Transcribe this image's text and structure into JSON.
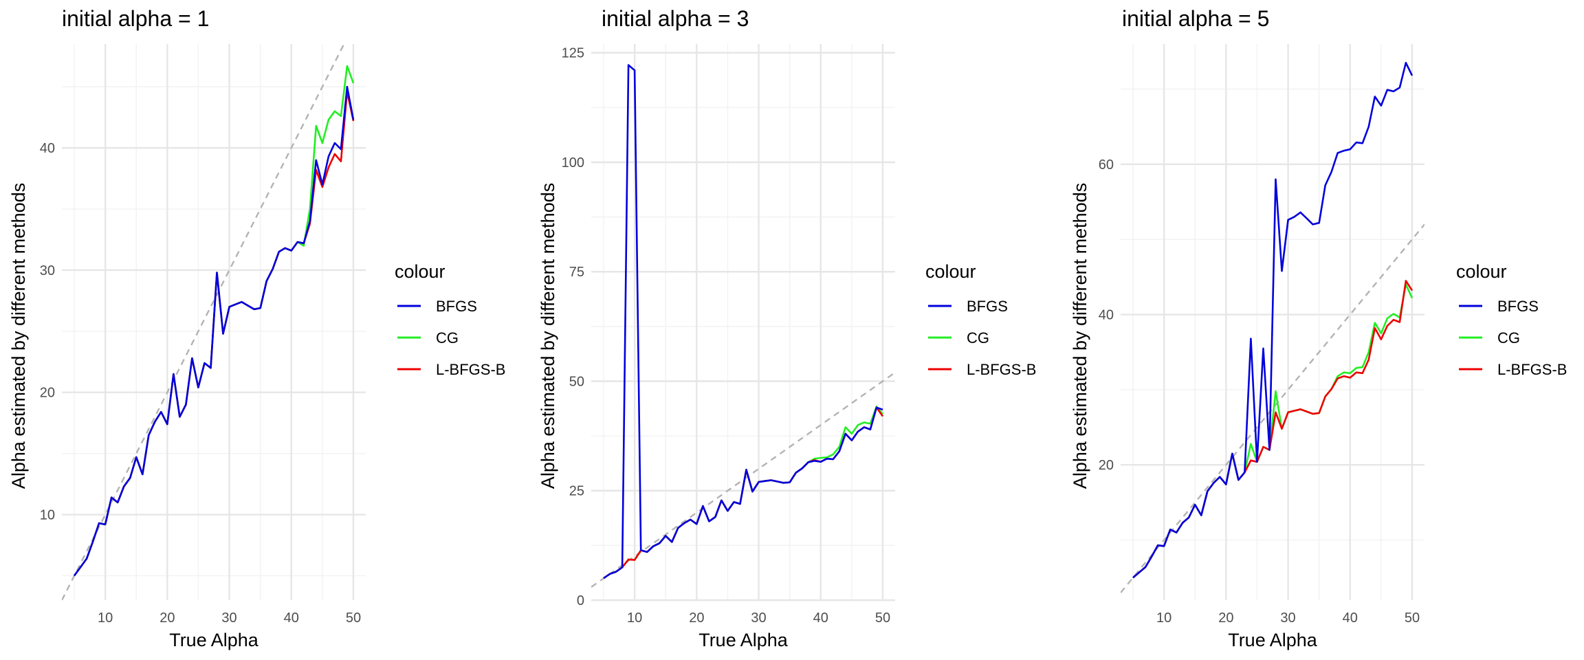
{
  "chart_data": [
    {
      "type": "line",
      "title": "initial alpha = 1",
      "xlabel": "True Alpha",
      "ylabel": "Alpha estimated by different methods",
      "xlim": [
        3,
        52
      ],
      "ylim": [
        3,
        48.5
      ],
      "xticks": [
        10,
        20,
        30,
        40,
        50
      ],
      "yticks": [
        10,
        20,
        30,
        40
      ],
      "grid": true,
      "reference_line": "y = x (dashed)",
      "legend": {
        "title": "colour",
        "position": "right",
        "entries": [
          "BFGS",
          "CG",
          "L-BFGS-B"
        ]
      },
      "x": [
        5,
        6,
        7,
        8,
        9,
        10,
        11,
        12,
        13,
        14,
        15,
        16,
        17,
        18,
        19,
        20,
        21,
        22,
        23,
        24,
        25,
        26,
        27,
        28,
        29,
        30,
        31,
        32,
        33,
        34,
        35,
        36,
        37,
        38,
        39,
        40,
        41,
        42,
        43,
        44,
        45,
        46,
        47,
        48,
        49,
        50
      ],
      "series": [
        {
          "name": "BFGS",
          "color": "#0000dd",
          "values": [
            5,
            5.7,
            6.4,
            7.8,
            9.3,
            9.2,
            11.4,
            11.0,
            12.3,
            13.0,
            14.7,
            13.3,
            16.5,
            17.6,
            18.4,
            17.4,
            21.5,
            18.0,
            19.0,
            22.8,
            20.4,
            22.4,
            22.0,
            29.8,
            24.8,
            27.0,
            27.2,
            27.4,
            27.1,
            26.8,
            26.9,
            29.1,
            30.1,
            31.5,
            31.8,
            31.6,
            32.3,
            32.2,
            34.0,
            39.0,
            37.0,
            39.3,
            40.4,
            39.9,
            45.0,
            42.3
          ]
        },
        {
          "name": "CG",
          "color": "#22ee22",
          "values": [
            5,
            5.7,
            6.4,
            7.8,
            9.3,
            9.2,
            11.4,
            11.0,
            12.3,
            13.0,
            14.7,
            13.3,
            16.5,
            17.6,
            18.4,
            17.4,
            21.5,
            18.0,
            19.0,
            22.8,
            20.4,
            22.4,
            22.0,
            29.8,
            24.8,
            27.0,
            27.2,
            27.4,
            27.1,
            26.8,
            26.9,
            29.1,
            30.1,
            31.5,
            31.8,
            31.6,
            32.3,
            32.0,
            35.0,
            41.8,
            40.4,
            42.3,
            43.0,
            42.6,
            46.7,
            45.3
          ]
        },
        {
          "name": "L-BFGS-B",
          "color": "#ee0000",
          "values": [
            5,
            5.7,
            6.4,
            7.8,
            9.3,
            9.2,
            11.4,
            11.0,
            12.3,
            13.0,
            14.7,
            13.3,
            16.5,
            17.6,
            18.4,
            17.4,
            21.5,
            18.0,
            19.0,
            22.8,
            20.4,
            22.4,
            22.0,
            29.8,
            24.8,
            27.0,
            27.2,
            27.4,
            27.1,
            26.8,
            26.9,
            29.1,
            30.1,
            31.5,
            31.8,
            31.6,
            32.3,
            32.2,
            33.8,
            38.2,
            36.8,
            38.4,
            39.5,
            38.9,
            44.6,
            42.2
          ]
        }
      ]
    },
    {
      "type": "line",
      "title": "initial alpha = 3",
      "xlabel": "True Alpha",
      "ylabel": "Alpha estimated by different methods",
      "xlim": [
        3,
        52
      ],
      "ylim": [
        0,
        127
      ],
      "xticks": [
        10,
        20,
        30,
        40,
        50
      ],
      "yticks": [
        0,
        25,
        50,
        75,
        100,
        125
      ],
      "grid": true,
      "reference_line": "y = x (dashed)",
      "legend": {
        "title": "colour",
        "position": "right",
        "entries": [
          "BFGS",
          "CG",
          "L-BFGS-B"
        ]
      },
      "x": [
        5,
        6,
        7,
        8,
        9,
        10,
        11,
        12,
        13,
        14,
        15,
        16,
        17,
        18,
        19,
        20,
        21,
        22,
        23,
        24,
        25,
        26,
        27,
        28,
        29,
        30,
        31,
        32,
        33,
        34,
        35,
        36,
        37,
        38,
        39,
        40,
        41,
        42,
        43,
        44,
        45,
        46,
        47,
        48,
        49,
        50
      ],
      "series": [
        {
          "name": "BFGS",
          "color": "#0000dd",
          "values": [
            5,
            6,
            6.5,
            7.5,
            122.2,
            121.0,
            11.4,
            11.0,
            12.3,
            13.0,
            14.7,
            13.3,
            16.5,
            17.6,
            18.4,
            17.4,
            21.5,
            18.0,
            19.0,
            22.8,
            20.4,
            22.4,
            22.0,
            29.8,
            24.8,
            27.0,
            27.2,
            27.4,
            27.1,
            26.8,
            26.9,
            29.1,
            30.1,
            31.5,
            31.8,
            31.6,
            32.3,
            32.2,
            34.0,
            38.0,
            36.5,
            38.5,
            39.5,
            39.0,
            44.0,
            43.5
          ]
        },
        {
          "name": "CG",
          "color": "#22ee22",
          "values": [
            5,
            6,
            6.5,
            7.5,
            9.3,
            9.2,
            11.4,
            11.0,
            12.3,
            13.0,
            14.7,
            13.3,
            16.5,
            17.6,
            18.4,
            17.4,
            21.5,
            18.0,
            19.0,
            22.8,
            20.4,
            22.4,
            22.0,
            29.8,
            24.8,
            27.0,
            27.2,
            27.4,
            27.1,
            26.8,
            26.9,
            29.1,
            30.1,
            31.5,
            32.3,
            32.5,
            32.6,
            33.3,
            35.0,
            39.5,
            38.0,
            40.0,
            40.6,
            40.3,
            44.2,
            42.5
          ]
        },
        {
          "name": "L-BFGS-B",
          "color": "#ee0000",
          "values": [
            5,
            6,
            6.5,
            7.5,
            9.3,
            9.2,
            11.4,
            11.0,
            12.3,
            13.0,
            14.7,
            13.3,
            16.5,
            17.6,
            18.4,
            17.4,
            21.5,
            18.0,
            19.0,
            22.8,
            20.4,
            22.4,
            22.0,
            29.8,
            24.8,
            27.0,
            27.2,
            27.4,
            27.1,
            26.8,
            26.9,
            29.1,
            30.1,
            31.5,
            32.0,
            31.6,
            32.3,
            32.2,
            34.0,
            38.0,
            36.5,
            38.5,
            39.5,
            39.0,
            44.0,
            42.0
          ]
        }
      ]
    },
    {
      "type": "line",
      "title": "initial alpha = 5",
      "xlabel": "True Alpha",
      "ylabel": "Alpha estimated by different methods",
      "xlim": [
        3,
        52
      ],
      "ylim": [
        2,
        76
      ],
      "xticks": [
        10,
        20,
        30,
        40,
        50
      ],
      "yticks": [
        20,
        40,
        60
      ],
      "grid": true,
      "reference_line": "y = x (dashed)",
      "legend": {
        "title": "colour",
        "position": "right",
        "entries": [
          "BFGS",
          "CG",
          "L-BFGS-B"
        ]
      },
      "x": [
        5,
        6,
        7,
        8,
        9,
        10,
        11,
        12,
        13,
        14,
        15,
        16,
        17,
        18,
        19,
        20,
        21,
        22,
        23,
        24,
        25,
        26,
        27,
        28,
        29,
        30,
        31,
        32,
        33,
        34,
        35,
        36,
        37,
        38,
        39,
        40,
        41,
        42,
        43,
        44,
        45,
        46,
        47,
        48,
        49,
        50
      ],
      "series": [
        {
          "name": "BFGS",
          "color": "#0000dd",
          "values": [
            5,
            5.7,
            6.4,
            7.8,
            9.3,
            9.2,
            11.4,
            11.0,
            12.3,
            13.0,
            14.7,
            13.3,
            16.5,
            17.6,
            18.4,
            17.4,
            21.5,
            18.0,
            19.0,
            36.8,
            20.4,
            35.5,
            22.0,
            58.0,
            45.8,
            52.6,
            53.0,
            53.6,
            52.8,
            52.0,
            52.2,
            57.2,
            59.0,
            61.5,
            61.8,
            62.0,
            62.9,
            62.8,
            65.0,
            69.0,
            67.8,
            69.9,
            69.7,
            70.2,
            73.5,
            71.8
          ]
        },
        {
          "name": "CG",
          "color": "#22ee22",
          "values": [
            5,
            5.7,
            6.4,
            7.8,
            9.3,
            9.2,
            11.4,
            11.0,
            12.3,
            13.0,
            14.7,
            13.3,
            16.5,
            17.6,
            18.4,
            17.4,
            21.5,
            18.0,
            19.0,
            22.8,
            20.4,
            22.4,
            22.0,
            29.8,
            24.8,
            27.0,
            27.2,
            27.4,
            27.1,
            26.8,
            26.9,
            29.1,
            30.1,
            31.8,
            32.3,
            32.2,
            32.9,
            33.0,
            35.0,
            38.9,
            37.5,
            39.5,
            40.1,
            39.6,
            44.0,
            42.2
          ]
        },
        {
          "name": "L-BFGS-B",
          "color": "#ee0000",
          "values": [
            5,
            5.7,
            6.4,
            7.8,
            9.3,
            9.2,
            11.4,
            11.0,
            12.3,
            13.0,
            14.7,
            13.3,
            16.5,
            17.6,
            18.4,
            17.4,
            21.5,
            18.0,
            19.0,
            20.6,
            20.4,
            22.4,
            22.0,
            27.0,
            24.8,
            27.0,
            27.2,
            27.4,
            27.1,
            26.8,
            26.9,
            29.1,
            30.1,
            31.5,
            31.8,
            31.6,
            32.3,
            32.2,
            34.0,
            38.2,
            36.7,
            38.5,
            39.3,
            39.0,
            44.5,
            43.2
          ]
        }
      ]
    }
  ]
}
